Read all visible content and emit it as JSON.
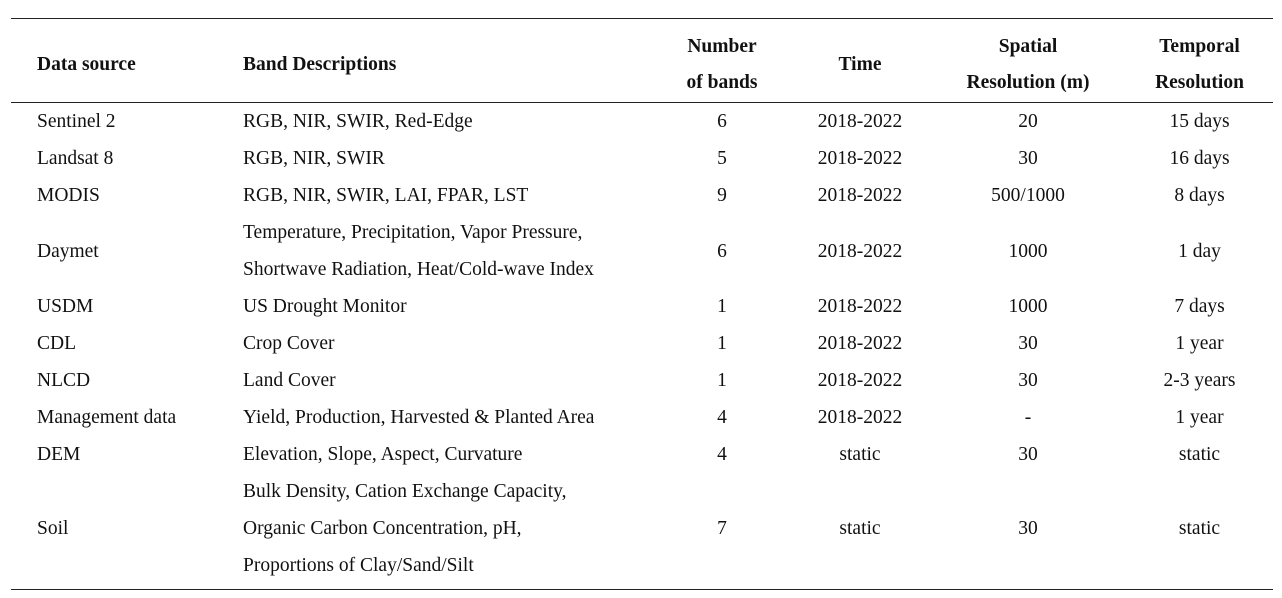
{
  "table": {
    "headers": {
      "data_source": "Data source",
      "band_descriptions": "Band Descriptions",
      "number_of_bands": [
        "Number",
        "of bands"
      ],
      "time": "Time",
      "spatial_resolution": [
        "Spatial",
        "Resolution (m)"
      ],
      "temporal_resolution": [
        "Temporal",
        "Resolution"
      ]
    },
    "rows": [
      {
        "source": "Sentinel 2",
        "bands": [
          "RGB, NIR, SWIR, Red-Edge"
        ],
        "count": "6",
        "time": "2018-2022",
        "spatial": "20",
        "temporal": "15 days"
      },
      {
        "source": "Landsat 8",
        "bands": [
          "RGB, NIR, SWIR"
        ],
        "count": "5",
        "time": "2018-2022",
        "spatial": "30",
        "temporal": "16 days"
      },
      {
        "source": "MODIS",
        "bands": [
          "RGB, NIR, SWIR, LAI, FPAR, LST"
        ],
        "count": "9",
        "time": "2018-2022",
        "spatial": "500/1000",
        "temporal": "8 days"
      },
      {
        "source": "Daymet",
        "bands": [
          "Temperature, Precipitation, Vapor Pressure,",
          "Shortwave Radiation, Heat/Cold-wave Index"
        ],
        "count": "6",
        "time": "2018-2022",
        "spatial": "1000",
        "temporal": "1 day"
      },
      {
        "source": "USDM",
        "bands": [
          "US Drought Monitor"
        ],
        "count": "1",
        "time": "2018-2022",
        "spatial": "1000",
        "temporal": "7 days"
      },
      {
        "source": "CDL",
        "bands": [
          "Crop Cover"
        ],
        "count": "1",
        "time": "2018-2022",
        "spatial": "30",
        "temporal": "1 year"
      },
      {
        "source": "NLCD",
        "bands": [
          "Land Cover"
        ],
        "count": "1",
        "time": "2018-2022",
        "spatial": "30",
        "temporal": "2-3 years"
      },
      {
        "source": "Management data",
        "bands": [
          "Yield, Production, Harvested & Planted Area"
        ],
        "count": "4",
        "time": "2018-2022",
        "spatial": "-",
        "temporal": "1 year"
      },
      {
        "source": "DEM",
        "bands": [
          "Elevation, Slope, Aspect, Curvature"
        ],
        "count": "4",
        "time": "static",
        "spatial": "30",
        "temporal": "static"
      },
      {
        "source": "Soil",
        "bands": [
          "Bulk Density, Cation Exchange Capacity,",
          "Organic Carbon Concentration, pH,",
          "Proportions of Clay/Sand/Silt"
        ],
        "count": "7",
        "time": "static",
        "spatial": "30",
        "temporal": "static"
      }
    ]
  }
}
